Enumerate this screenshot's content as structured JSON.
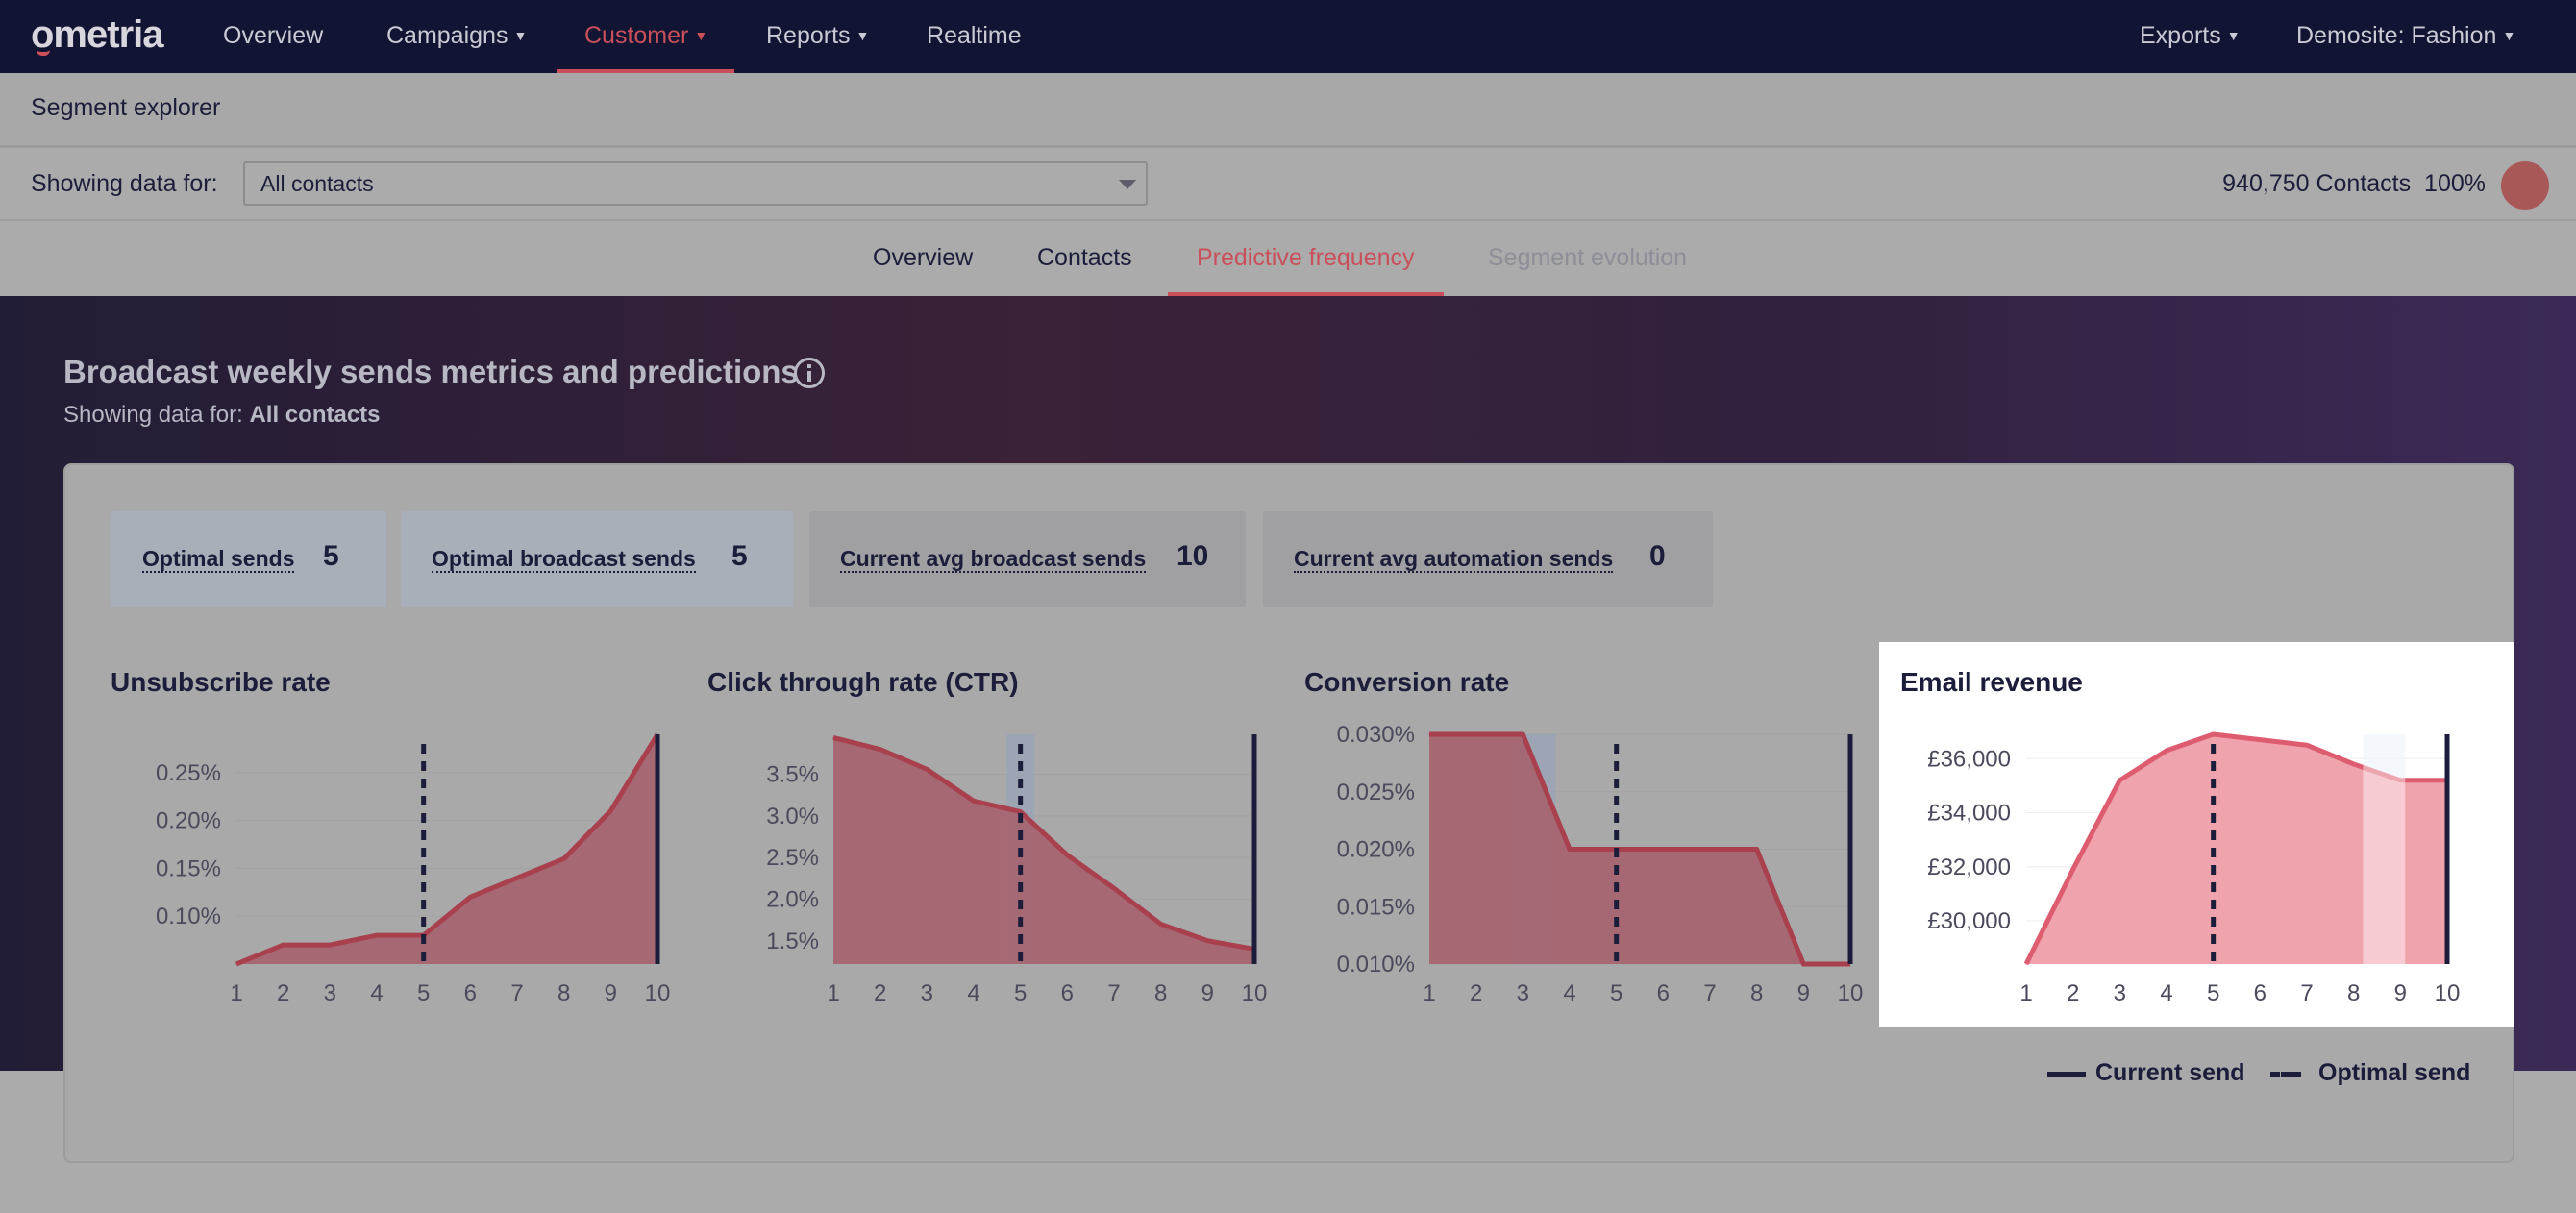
{
  "nav": {
    "logo": "ometria",
    "items": [
      {
        "label": "Overview",
        "dropdown": false
      },
      {
        "label": "Campaigns",
        "dropdown": true
      },
      {
        "label": "Customer",
        "dropdown": true,
        "active": true
      },
      {
        "label": "Reports",
        "dropdown": true
      },
      {
        "label": "Realtime",
        "dropdown": false
      }
    ],
    "right": [
      {
        "label": "Exports",
        "dropdown": true
      },
      {
        "label": "Demosite: Fashion",
        "dropdown": true
      }
    ]
  },
  "segment_bar": {
    "title": "Segment explorer"
  },
  "filter": {
    "label": "Showing data for:",
    "selected": "All contacts",
    "contacts_count": "940,750 Contacts",
    "contacts_pct": "100%"
  },
  "subtabs": [
    {
      "label": "Overview"
    },
    {
      "label": "Contacts"
    },
    {
      "label": "Predictive frequency",
      "active": true
    },
    {
      "label": "Segment evolution",
      "disabled": true
    }
  ],
  "hero": {
    "title": "Broadcast weekly sends metrics and predictions",
    "subtitle_prefix": "Showing data for:",
    "subtitle_value": "All contacts"
  },
  "metrics": [
    {
      "label": "Optimal sends",
      "value": "5",
      "style": "blue"
    },
    {
      "label": "Optimal broadcast sends",
      "value": "5",
      "style": "blue"
    },
    {
      "label": "Current avg broadcast sends",
      "value": "10",
      "style": "grey"
    },
    {
      "label": "Current avg automation sends",
      "value": "0",
      "style": "grey"
    }
  ],
  "colors": {
    "accent": "#c9505a",
    "nav_bg": "#121434",
    "area_dim": "#a66470",
    "line_dim": "#a8404e",
    "area_bright": "#efa3ad",
    "line_bright": "#de5c70",
    "marker": "#1b1d3a"
  },
  "legend": {
    "current": "Current send",
    "optimal": "Optimal send"
  },
  "chart_data": [
    {
      "type": "area",
      "title": "Unsubscribe rate",
      "x": [
        1,
        2,
        3,
        4,
        5,
        6,
        7,
        8,
        9,
        10
      ],
      "y": [
        0.0005,
        0.0007,
        0.0007,
        0.0008,
        0.0008,
        0.0012,
        0.0014,
        0.0016,
        0.0021,
        0.0029
      ],
      "yticks": [
        "0.25%",
        "0.20%",
        "0.15%",
        "0.10%"
      ],
      "ytick_values": [
        0.0025,
        0.002,
        0.0015,
        0.001
      ],
      "ylim": [
        0.0005,
        0.0029
      ],
      "current_send": 10,
      "optimal_send": 5,
      "highlighted": false
    },
    {
      "type": "area",
      "title": "Click through rate (CTR)",
      "x": [
        1,
        2,
        3,
        4,
        5,
        6,
        7,
        8,
        9,
        10
      ],
      "y": [
        0.0394,
        0.038,
        0.0356,
        0.0318,
        0.0305,
        0.0253,
        0.0213,
        0.017,
        0.015,
        0.014
      ],
      "yticks": [
        "3.5%",
        "3.0%",
        "2.5%",
        "2.0%",
        "1.5%"
      ],
      "ytick_values": [
        0.035,
        0.03,
        0.025,
        0.02,
        0.015
      ],
      "ylim": [
        0.0122,
        0.0398
      ],
      "current_send": 10,
      "optimal_send": 5,
      "band": [
        4.7,
        5.3
      ],
      "highlighted": false
    },
    {
      "type": "area",
      "title": "Conversion rate",
      "x": [
        1,
        2,
        3,
        4,
        5,
        6,
        7,
        8,
        9,
        10
      ],
      "y": [
        0.0003,
        0.0003,
        0.0003,
        0.0002,
        0.0002,
        0.0002,
        0.0002,
        0.0002,
        0.0001,
        0.0001
      ],
      "yticks": [
        "0.030%",
        "0.025%",
        "0.020%",
        "0.015%",
        "0.010%"
      ],
      "ytick_values": [
        0.0003,
        0.00025,
        0.0002,
        0.00015,
        0.0001
      ],
      "ylim": [
        0.0001,
        0.0003
      ],
      "current_send": 10,
      "optimal_send": 5,
      "band": [
        2.8,
        3.7
      ],
      "highlighted": false
    },
    {
      "type": "area",
      "title": "Email revenue",
      "x": [
        1,
        2,
        3,
        4,
        5,
        6,
        7,
        8,
        9,
        10
      ],
      "y": [
        28400,
        31900,
        35200,
        36300,
        36900,
        36700,
        36500,
        35800,
        35200,
        35200
      ],
      "yticks": [
        "£36,000",
        "£34,000",
        "£32,000",
        "£30,000"
      ],
      "ytick_values": [
        36000,
        34000,
        32000,
        30000
      ],
      "ylim": [
        28400,
        36900
      ],
      "current_send": 10,
      "optimal_send": 5,
      "band": [
        8.2,
        9.1
      ],
      "highlighted": true
    }
  ]
}
